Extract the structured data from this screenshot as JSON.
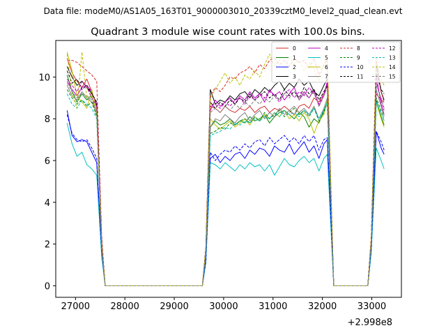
{
  "header": {
    "data_file": "Data file: modeM0/AS1A05_163T01_9000003010_20339cztM0_level2_quad_clean.evt"
  },
  "chart_data": {
    "type": "line",
    "title": "Quadrant 3 module wise count rates with 100.0s bins.",
    "xlabel": "",
    "ylabel": "",
    "x_offset_label": "+2.998e8",
    "xlim": [
      26600,
      33600
    ],
    "ylim": [
      -0.55,
      11.75
    ],
    "x_ticks": [
      27000,
      28000,
      29000,
      30000,
      31000,
      32000,
      33000
    ],
    "x_tick_labels": [
      "27000",
      "28000",
      "29000",
      "30000",
      "31000",
      "32000",
      "33000"
    ],
    "y_ticks": [
      0,
      2,
      4,
      6,
      8,
      10
    ],
    "y_tick_labels": [
      "0",
      "2",
      "4",
      "6",
      "8",
      "10"
    ],
    "grid": false,
    "legend_position": "top-right",
    "x": [
      26830,
      26930,
      27030,
      27130,
      27230,
      27330,
      27430,
      27530,
      27600,
      29570,
      29640,
      29730,
      29830,
      29930,
      30030,
      30130,
      30230,
      30330,
      30430,
      30530,
      30630,
      30730,
      30830,
      30930,
      31030,
      31130,
      31230,
      31330,
      31430,
      31530,
      31630,
      31730,
      31830,
      31930,
      32030,
      32100,
      32230,
      32920,
      32990,
      33090,
      33190,
      33250
    ],
    "series": [
      {
        "name": "0",
        "color": "#d62728",
        "dash": "solid",
        "values": [
          10.9,
          10.2,
          9.8,
          9.5,
          9.9,
          9.3,
          8.6,
          2.0,
          0,
          0,
          1.6,
          8.6,
          8.5,
          8.3,
          8.6,
          8.4,
          8.3,
          8.5,
          8.4,
          8.6,
          8.3,
          8.5,
          8.6,
          8.3,
          8.5,
          8.4,
          8.6,
          8.4,
          8.2,
          8.6,
          8.7,
          8.5,
          9.0,
          8.8,
          9.2,
          9.6,
          0,
          0,
          2.2,
          9.2,
          8.9,
          8.8
        ]
      },
      {
        "name": "1",
        "color": "#008000",
        "dash": "solid",
        "values": [
          10.1,
          9.3,
          8.8,
          9.2,
          8.9,
          9.1,
          8.2,
          2.0,
          0,
          0,
          1.5,
          7.6,
          7.9,
          7.7,
          7.8,
          8.0,
          7.7,
          7.9,
          7.8,
          8.1,
          7.9,
          8.0,
          8.2,
          7.8,
          8.1,
          8.3,
          8.4,
          8.2,
          8.0,
          8.3,
          8.1,
          7.6,
          8.0,
          7.8,
          8.4,
          8.8,
          0,
          0,
          2.0,
          8.9,
          8.1,
          7.7
        ]
      },
      {
        "name": "2",
        "color": "#0000ff",
        "dash": "solid",
        "values": [
          8.4,
          7.2,
          6.9,
          7.0,
          6.9,
          6.4,
          5.9,
          1.6,
          0,
          0,
          1.2,
          6.1,
          6.3,
          5.9,
          6.2,
          6.0,
          6.3,
          6.4,
          6.1,
          6.5,
          6.3,
          6.6,
          6.5,
          6.2,
          6.7,
          6.5,
          6.4,
          6.8,
          6.3,
          6.6,
          6.9,
          6.4,
          6.7,
          6.1,
          6.8,
          7.0,
          0,
          0,
          1.7,
          7.4,
          6.6,
          6.3
        ]
      },
      {
        "name": "3",
        "color": "#000000",
        "dash": "solid",
        "values": [
          10.5,
          10.0,
          9.6,
          9.8,
          9.5,
          9.2,
          8.7,
          2.1,
          0,
          0,
          1.8,
          9.4,
          8.7,
          8.9,
          8.8,
          9.1,
          8.9,
          9.2,
          9.3,
          9.0,
          9.4,
          9.2,
          9.5,
          9.3,
          9.6,
          9.8,
          9.4,
          9.7,
          9.5,
          9.9,
          9.6,
          9.8,
          9.3,
          9.1,
          9.6,
          9.9,
          0,
          0,
          2.3,
          10.6,
          9.3,
          8.9
        ]
      },
      {
        "name": "4",
        "color": "#bf00bf",
        "dash": "solid",
        "values": [
          9.8,
          9.4,
          9.1,
          9.5,
          9.6,
          9.3,
          8.7,
          2.0,
          0,
          0,
          1.7,
          8.4,
          8.9,
          8.6,
          8.8,
          9.0,
          8.7,
          9.1,
          8.9,
          9.3,
          9.0,
          9.2,
          8.8,
          9.4,
          9.1,
          9.3,
          8.9,
          9.2,
          9.5,
          8.9,
          9.3,
          9.0,
          9.4,
          8.6,
          9.1,
          9.8,
          0,
          0,
          2.2,
          10.1,
          8.7,
          8.2
        ]
      },
      {
        "name": "5",
        "color": "#00bfbf",
        "dash": "solid",
        "values": [
          7.8,
          6.8,
          6.2,
          6.4,
          5.8,
          5.6,
          5.3,
          1.4,
          0,
          0,
          1.1,
          5.9,
          5.8,
          5.6,
          5.9,
          5.7,
          5.5,
          5.8,
          5.6,
          5.9,
          5.7,
          5.8,
          5.5,
          5.8,
          5.3,
          5.7,
          6.1,
          5.8,
          5.7,
          6.0,
          6.2,
          5.9,
          6.1,
          5.5,
          6.1,
          6.3,
          0,
          0,
          1.6,
          6.6,
          6.0,
          5.6
        ]
      },
      {
        "name": "6",
        "color": "#bfbf00",
        "dash": "solid",
        "values": [
          11.2,
          10.3,
          9.1,
          8.8,
          8.5,
          9.4,
          8.4,
          2.0,
          0,
          0,
          1.7,
          8.0,
          7.7,
          7.5,
          7.7,
          7.9,
          7.6,
          7.8,
          8.0,
          7.7,
          8.1,
          7.9,
          8.2,
          8.0,
          8.3,
          8.1,
          8.4,
          8.0,
          8.2,
          7.9,
          8.3,
          8.0,
          7.3,
          7.9,
          8.2,
          8.9,
          0,
          0,
          2.0,
          8.8,
          8.0,
          7.6
        ]
      },
      {
        "name": "7",
        "color": "#808080",
        "dash": "solid",
        "values": [
          9.6,
          9.1,
          8.9,
          9.3,
          9.0,
          8.8,
          8.3,
          1.9,
          0,
          0,
          1.6,
          7.6,
          8.0,
          7.9,
          8.2,
          8.0,
          7.8,
          8.1,
          8.3,
          7.9,
          8.2,
          8.4,
          8.0,
          8.3,
          8.1,
          8.5,
          8.2,
          8.4,
          8.6,
          8.3,
          8.5,
          8.2,
          8.6,
          8.0,
          8.5,
          9.0,
          0,
          0,
          2.1,
          9.4,
          8.6,
          8.1
        ]
      },
      {
        "name": "8",
        "color": "#d62728",
        "dash": "dashed",
        "values": [
          10.8,
          10.8,
          10.7,
          10.5,
          10.3,
          10.1,
          9.8,
          2.4,
          0,
          0,
          1.9,
          9.1,
          9.5,
          9.3,
          9.6,
          10.0,
          9.9,
          10.2,
          10.3,
          10.5,
          10.2,
          10.6,
          10.4,
          10.8,
          10.9,
          10.6,
          10.8,
          10.5,
          10.9,
          10.7,
          10.8,
          10.4,
          10.9,
          10.1,
          10.6,
          10.8,
          0,
          0,
          2.4,
          10.9,
          9.3,
          8.8
        ]
      },
      {
        "name": "9",
        "color": "#008000",
        "dash": "dashed",
        "values": [
          9.4,
          9.0,
          8.7,
          8.9,
          8.6,
          8.8,
          8.1,
          1.9,
          0,
          0,
          1.5,
          7.3,
          7.4,
          7.6,
          7.5,
          7.8,
          7.7,
          7.9,
          8.0,
          7.8,
          8.1,
          7.9,
          8.3,
          8.0,
          8.2,
          8.4,
          8.1,
          8.3,
          8.5,
          8.2,
          8.4,
          8.1,
          8.5,
          7.9,
          8.3,
          8.8,
          0,
          0,
          2.0,
          9.0,
          8.4,
          7.9
        ]
      },
      {
        "name": "10",
        "color": "#0000ff",
        "dash": "dashed",
        "values": [
          8.2,
          7.3,
          7.0,
          6.9,
          7.0,
          6.6,
          6.1,
          1.6,
          0,
          0,
          1.2,
          6.4,
          6.0,
          6.3,
          6.5,
          6.4,
          6.7,
          6.5,
          6.8,
          6.6,
          6.9,
          7.0,
          6.7,
          7.1,
          6.8,
          7.0,
          7.2,
          6.9,
          7.1,
          6.8,
          7.2,
          6.9,
          7.2,
          6.5,
          7.0,
          7.1,
          0,
          0,
          1.8,
          7.4,
          6.9,
          6.5
        ]
      },
      {
        "name": "11",
        "color": "#000000",
        "dash": "dashed",
        "values": [
          10.3,
          9.7,
          9.9,
          9.4,
          9.6,
          9.2,
          8.8,
          2.1,
          0,
          0,
          1.8,
          8.8,
          8.5,
          8.8,
          8.6,
          8.9,
          8.7,
          9.0,
          8.8,
          9.2,
          8.9,
          9.1,
          9.3,
          9.0,
          9.2,
          8.9,
          9.4,
          9.1,
          9.3,
          9.0,
          9.5,
          9.2,
          9.4,
          8.9,
          9.3,
          9.6,
          0,
          0,
          2.2,
          10.2,
          9.4,
          9.2
        ]
      },
      {
        "name": "12",
        "color": "#bf00bf",
        "dash": "dashed",
        "values": [
          9.9,
          9.6,
          9.3,
          9.8,
          9.5,
          9.0,
          8.6,
          2.0,
          0,
          0,
          1.7,
          8.6,
          8.7,
          8.5,
          8.8,
          8.6,
          8.9,
          9.0,
          8.7,
          9.1,
          8.9,
          9.2,
          9.0,
          9.3,
          9.1,
          8.8,
          9.2,
          9.4,
          9.0,
          9.3,
          9.1,
          9.5,
          9.2,
          8.7,
          9.2,
          9.7,
          0,
          0,
          2.2,
          9.8,
          8.9,
          8.4
        ]
      },
      {
        "name": "13",
        "color": "#00bfbf",
        "dash": "dashed",
        "values": [
          9.2,
          8.7,
          8.5,
          8.9,
          8.7,
          8.5,
          8.0,
          1.9,
          0,
          0,
          1.5,
          7.2,
          7.3,
          7.4,
          7.6,
          7.5,
          7.8,
          7.7,
          7.9,
          7.8,
          8.0,
          7.9,
          8.1,
          8.0,
          8.3,
          8.1,
          8.4,
          8.2,
          8.3,
          8.1,
          8.4,
          8.2,
          8.5,
          8.0,
          8.4,
          8.8,
          0,
          0,
          2.0,
          8.8,
          8.3,
          7.9
        ]
      },
      {
        "name": "14",
        "color": "#bfbf00",
        "dash": "dashed",
        "values": [
          11.1,
          9.2,
          8.5,
          11.2,
          9.0,
          9.1,
          8.3,
          2.0,
          0,
          0,
          1.8,
          9.0,
          9.4,
          9.8,
          10.2,
          9.7,
          10.0,
          9.6,
          10.1,
          9.9,
          10.3,
          10.0,
          10.6,
          11.1,
          10.5,
          10.8,
          10.4,
          10.9,
          10.6,
          10.8,
          10.3,
          10.7,
          10.4,
          9.8,
          10.6,
          10.9,
          0,
          0,
          2.3,
          10.8,
          9.9,
          9.6
        ]
      },
      {
        "name": "15",
        "color": "#808080",
        "dash": "dashed",
        "values": [
          9.7,
          9.3,
          9.0,
          9.2,
          9.1,
          8.9,
          8.3,
          1.9,
          0,
          0,
          1.6,
          8.3,
          8.5,
          8.3,
          8.6,
          8.4,
          8.7,
          8.5,
          8.8,
          8.6,
          8.9,
          8.7,
          9.0,
          8.8,
          9.1,
          8.9,
          9.2,
          9.0,
          9.3,
          8.9,
          9.2,
          9.0,
          9.3,
          8.6,
          9.1,
          9.5,
          0,
          0,
          2.1,
          9.6,
          9.0,
          8.5
        ]
      }
    ]
  }
}
